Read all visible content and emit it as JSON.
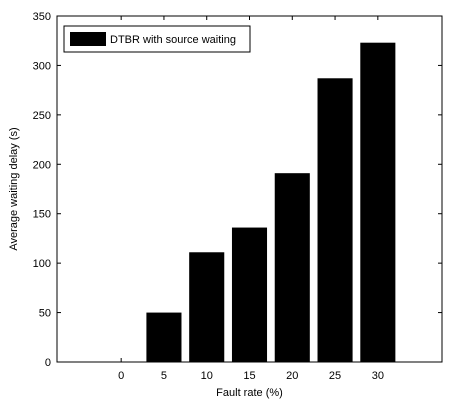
{
  "chart_data": {
    "type": "bar",
    "categories": [
      "0",
      "5",
      "10",
      "15",
      "20",
      "25",
      "30"
    ],
    "series": [
      {
        "name": "DTBR with source waiting",
        "values": [
          0,
          50,
          111,
          136,
          191,
          287,
          323
        ],
        "color": "#000000"
      }
    ],
    "xlabel": "Fault rate (%)",
    "ylabel": "Average waiting delay (s)",
    "ylim": [
      0,
      350
    ],
    "yticks": [
      "0",
      "50",
      "100",
      "150",
      "200",
      "250",
      "300",
      "350"
    ],
    "grid": false,
    "legend": "top-left"
  }
}
